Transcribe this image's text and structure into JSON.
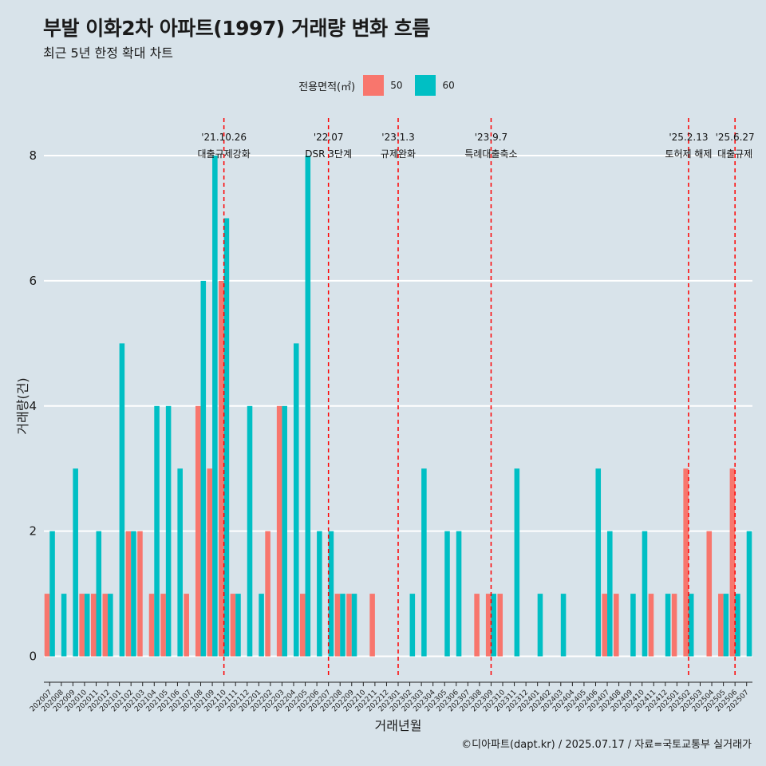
{
  "title": "부발 이화2차 아파트(1997) 거래량 변화 흐름",
  "subtitle": "최근 5년 한정 확대 차트",
  "legend": {
    "title": "전용면적(㎡)",
    "items": [
      {
        "label": "50",
        "color": "#f8766d"
      },
      {
        "label": "60",
        "color": "#00bfc4"
      }
    ]
  },
  "caption": "©디아파트(dapt.kr) / 2025.07.17 / 자료=국토교통부 실거래가",
  "chart_data": {
    "type": "bar",
    "xlabel": "거래년월",
    "ylabel": "거래량(건)",
    "ylim": [
      -0.35,
      8.6
    ],
    "yticks": [
      0,
      2,
      4,
      6,
      8
    ],
    "categories": [
      "202007",
      "202008",
      "202009",
      "202010",
      "202011",
      "202012",
      "202101",
      "202102",
      "202103",
      "202104",
      "202105",
      "202106",
      "202107",
      "202108",
      "202109",
      "202110",
      "202111",
      "202112",
      "202201",
      "202202",
      "202203",
      "202204",
      "202205",
      "202206",
      "202207",
      "202208",
      "202209",
      "202210",
      "202211",
      "202212",
      "202301",
      "202302",
      "202303",
      "202304",
      "202305",
      "202306",
      "202307",
      "202308",
      "202309",
      "202310",
      "202311",
      "202312",
      "202401",
      "202402",
      "202403",
      "202404",
      "202405",
      "202406",
      "202407",
      "202408",
      "202409",
      "202410",
      "202411",
      "202412",
      "202501",
      "202502",
      "202503",
      "202504",
      "202505",
      "202506",
      "202507"
    ],
    "series": [
      {
        "name": "50",
        "color": "#f8766d",
        "values": [
          1,
          0,
          0,
          1,
          1,
          1,
          0,
          2,
          2,
          1,
          1,
          0,
          1,
          4,
          3,
          6,
          1,
          0,
          0,
          2,
          4,
          0,
          1,
          0,
          0,
          1,
          1,
          0,
          1,
          0,
          0,
          0,
          0,
          0,
          0,
          0,
          0,
          1,
          1,
          1,
          0,
          0,
          0,
          0,
          0,
          0,
          0,
          0,
          1,
          1,
          0,
          0,
          1,
          0,
          1,
          3,
          0,
          2,
          1,
          3,
          0
        ]
      },
      {
        "name": "60",
        "color": "#00bfc4",
        "values": [
          2,
          1,
          3,
          1,
          2,
          1,
          5,
          2,
          0,
          4,
          4,
          3,
          0,
          6,
          8,
          7,
          1,
          4,
          1,
          0,
          4,
          5,
          8,
          2,
          2,
          1,
          1,
          0,
          0,
          0,
          0,
          1,
          3,
          0,
          2,
          2,
          0,
          0,
          1,
          0,
          3,
          0,
          1,
          0,
          1,
          0,
          0,
          3,
          2,
          0,
          1,
          2,
          0,
          1,
          0,
          1,
          0,
          0,
          1,
          1,
          2
        ]
      }
    ],
    "events": [
      {
        "month": "202110",
        "date": "'21.10.26",
        "label": "대출규제강화"
      },
      {
        "month": "202207",
        "date": "'22.07",
        "label": "DSR 3단계"
      },
      {
        "month": "202301",
        "date": "'23.1.3",
        "label": "규제완화"
      },
      {
        "month": "202309",
        "date": "'23.9.7",
        "label": "특례대출축소"
      },
      {
        "month": "202502",
        "date": "'25.2.13",
        "label": "토허제 해제"
      },
      {
        "month": "202506",
        "date": "'25.6.27",
        "label": "대출규제"
      }
    ]
  }
}
